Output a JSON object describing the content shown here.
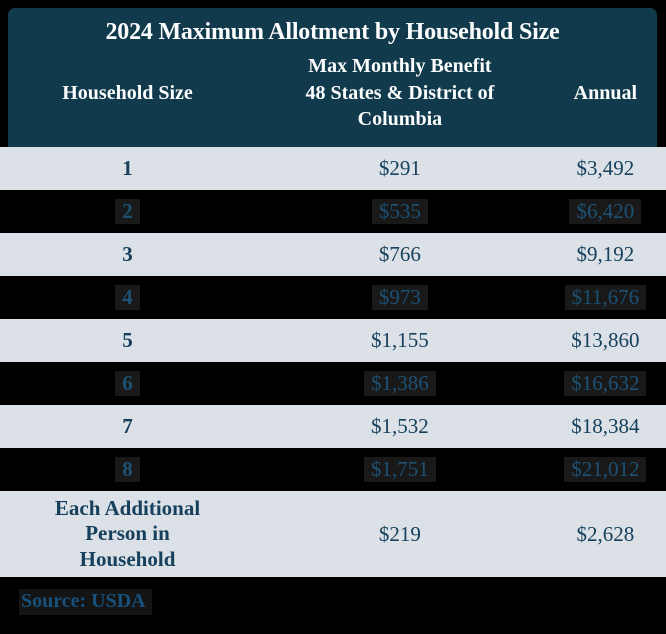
{
  "title": "2024 Maximum Allotment by Household Size",
  "table": {
    "columns": {
      "household": "Household Size",
      "monthly": "Max Monthly Benefit\n48 States & District of\nColumbia",
      "annual": "Annual"
    },
    "rows": [
      {
        "size": "1",
        "monthly": "$291",
        "annual": "$3,492"
      },
      {
        "size": "2",
        "monthly": "$535",
        "annual": "$6,420"
      },
      {
        "size": "3",
        "monthly": "$766",
        "annual": "$9,192"
      },
      {
        "size": "4",
        "monthly": "$973",
        "annual": "$11,676"
      },
      {
        "size": "5",
        "monthly": "$1,155",
        "annual": "$13,860"
      },
      {
        "size": "6",
        "monthly": "$1,386",
        "annual": "$16,632"
      },
      {
        "size": "7",
        "monthly": "$1,532",
        "annual": "$18,384"
      },
      {
        "size": "8",
        "monthly": "$1,751",
        "annual": "$21,012"
      },
      {
        "size": "Each Additional\nPerson in\nHousehold",
        "monthly": "$219",
        "annual": "$2,628"
      }
    ]
  },
  "source": "Source: USDA",
  "colors": {
    "header_bg": "#123a4d",
    "row_light_bg": "#dbe1e7",
    "row_dark_bg": "#000000",
    "text_navy": "#16405c",
    "text_navy_on_dark": "#1d5174",
    "header_text": "#ffffff"
  },
  "chart_data": {
    "type": "table",
    "title": "2024 Maximum Allotment by Household Size",
    "columns": [
      "Household Size",
      "Max Monthly Benefit 48 States & District of Columbia",
      "Annual"
    ],
    "rows": [
      [
        "1",
        "$291",
        "$3,492"
      ],
      [
        "2",
        "$535",
        "$6,420"
      ],
      [
        "3",
        "$766",
        "$9,192"
      ],
      [
        "4",
        "$973",
        "$11,676"
      ],
      [
        "5",
        "$1,155",
        "$13,860"
      ],
      [
        "6",
        "$1,386",
        "$16,632"
      ],
      [
        "7",
        "$1,532",
        "$18,384"
      ],
      [
        "8",
        "$1,751",
        "$21,012"
      ],
      [
        "Each Additional Person in Household",
        "$219",
        "$2,628"
      ]
    ],
    "source": "Source: USDA"
  }
}
